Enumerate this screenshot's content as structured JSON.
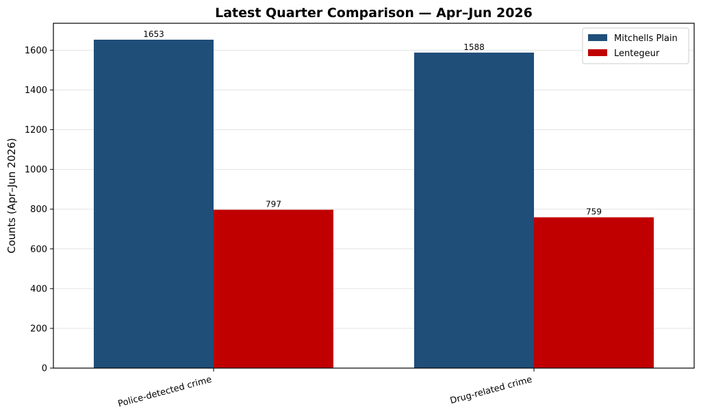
{
  "chart_data": {
    "type": "bar",
    "title": "Latest Quarter Comparison — Apr–Jun 2026",
    "xlabel": "",
    "ylabel": "Counts (Apr–Jun 2026)",
    "categories": [
      "Police-detected crime",
      "Drug-related crime"
    ],
    "series": [
      {
        "name": "Mitchells Plain",
        "values": [
          1653,
          1588
        ],
        "color": "#1f4e79"
      },
      {
        "name": "Lentegeur",
        "values": [
          797,
          759
        ],
        "color": "#c00000"
      }
    ],
    "ylim": [
      0,
      1735.65
    ],
    "yticks": [
      0,
      200,
      400,
      600,
      800,
      1000,
      1200,
      1400,
      1600
    ],
    "grid": "y",
    "legend": "top-right",
    "data_labels": true
  }
}
